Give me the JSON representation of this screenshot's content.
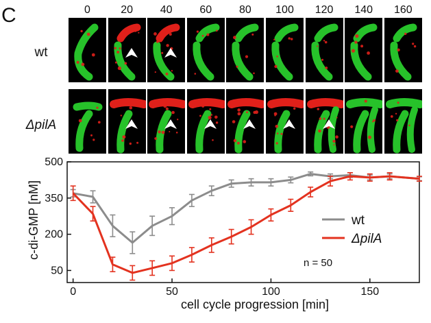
{
  "panel_letter": "C",
  "microscopy": {
    "time_labels": [
      "0",
      "20",
      "40",
      "60",
      "80",
      "100",
      "120",
      "140",
      "160"
    ],
    "rows": [
      {
        "label": "wt",
        "italic": false,
        "arrow_frames": [
          1,
          2
        ]
      },
      {
        "label": "ΔpilA",
        "italic": true,
        "arrow_frames": [
          1,
          2,
          3,
          4,
          5,
          6
        ]
      }
    ],
    "colors": {
      "cell_green": "#27c22a",
      "signal_red": "#e0201a",
      "background": "#000000"
    }
  },
  "chart_data": {
    "type": "line",
    "xlabel": "cell cycle progression [min]",
    "ylabel": "c-di-GMP [nM]",
    "xlim": [
      -3,
      175
    ],
    "ylim": [
      0,
      500
    ],
    "xticks": [
      0,
      50,
      100,
      150
    ],
    "yticks": [
      50,
      200,
      350,
      500
    ],
    "grid": false,
    "legend_position": "right",
    "annotation": "n = 50",
    "series": [
      {
        "name": "wt",
        "color": "#8c8c8c",
        "x": [
          0,
          10,
          20,
          30,
          40,
          50,
          60,
          70,
          80,
          90,
          100,
          110,
          120,
          130,
          140,
          150,
          160,
          175
        ],
        "values": [
          370,
          355,
          235,
          165,
          235,
          275,
          340,
          380,
          410,
          415,
          415,
          425,
          450,
          440,
          445,
          435,
          440,
          430
        ],
        "errors": [
          15,
          25,
          45,
          45,
          40,
          35,
          25,
          20,
          15,
          15,
          15,
          12,
          8,
          10,
          10,
          10,
          10,
          8
        ]
      },
      {
        "name": "ΔpilA",
        "color": "#e3321f",
        "x": [
          0,
          10,
          20,
          30,
          40,
          50,
          60,
          70,
          80,
          90,
          100,
          110,
          120,
          130,
          140,
          150,
          160,
          175
        ],
        "values": [
          370,
          285,
          75,
          40,
          60,
          80,
          115,
          155,
          190,
          230,
          280,
          320,
          375,
          420,
          440,
          435,
          440,
          430
        ],
        "errors": [
          30,
          30,
          30,
          30,
          30,
          30,
          30,
          30,
          30,
          30,
          25,
          25,
          20,
          20,
          15,
          15,
          15,
          10
        ]
      }
    ]
  }
}
